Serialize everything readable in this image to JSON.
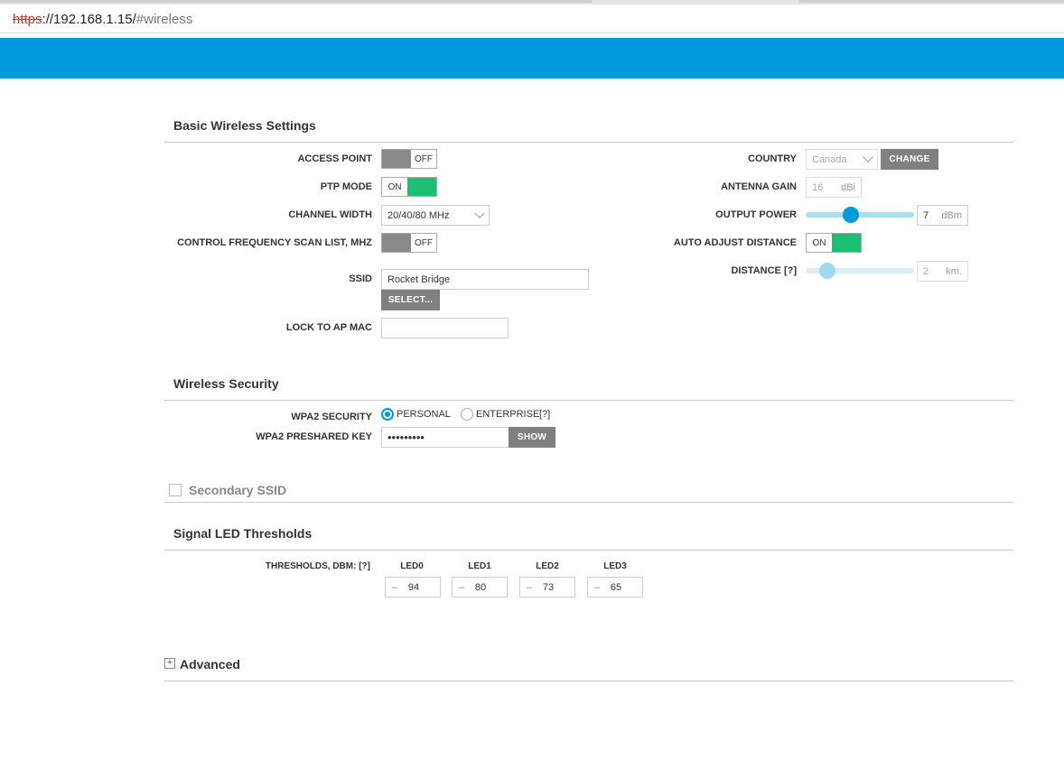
{
  "browser": {
    "url_protocol": "https",
    "url_rest": "://192.168.1.15/",
    "url_hash": "#wireless"
  },
  "basic": {
    "title": "Basic Wireless Settings",
    "access_point": {
      "label": "ACCESS POINT",
      "state": "OFF"
    },
    "ptp_mode": {
      "label": "PTP MODE",
      "state": "ON"
    },
    "channel_width": {
      "label": "CHANNEL WIDTH",
      "value": "20/40/80 MHz"
    },
    "scan_list": {
      "label": "CONTROL FREQUENCY SCAN LIST, MHz",
      "state": "OFF"
    },
    "ssid": {
      "label": "SSID",
      "value": "Rocket Bridge",
      "select_label": "SELECT..."
    },
    "lock_ap": {
      "label": "LOCK TO AP MAC",
      "value": ""
    },
    "country": {
      "label": "COUNTRY",
      "value": "Canada",
      "change_label": "CHANGE"
    },
    "antenna_gain": {
      "label": "ANTENNA GAIN",
      "value": "16",
      "unit": "dBi"
    },
    "output_power": {
      "label": "OUTPUT POWER",
      "value": "7",
      "unit": "dBm",
      "level": 0.4
    },
    "auto_adjust": {
      "label": "AUTO ADJUST DISTANCE",
      "state": "ON"
    },
    "distance": {
      "label": "DISTANCE [?]",
      "value": "2",
      "unit": "km.",
      "level": 0.15
    }
  },
  "security": {
    "title": "Wireless Security",
    "wpa2": {
      "label": "WPA2 SECURITY",
      "options": [
        "PERSONAL",
        "ENTERPRISE"
      ],
      "selected": "PERSONAL",
      "help": "[?]"
    },
    "key": {
      "label": "WPA2 PRESHARED KEY",
      "value": "•••••••••",
      "show_label": "SHOW"
    }
  },
  "secondary": {
    "title": "Secondary SSID"
  },
  "led": {
    "title": "Signal LED Thresholds",
    "label": "THRESHOLDS, dBm: [?]",
    "items": [
      {
        "name": "LED0",
        "minus": "–",
        "value": "94"
      },
      {
        "name": "LED1",
        "minus": "–",
        "value": "80"
      },
      {
        "name": "LED2",
        "minus": "–",
        "value": "73"
      },
      {
        "name": "LED3",
        "minus": "–",
        "value": "65"
      }
    ]
  },
  "advanced": {
    "title": "Advanced",
    "expand_symbol": "+"
  },
  "colors": {
    "accent": "#0099dc",
    "toggle_on": "#1dbf73",
    "button": "#808080"
  }
}
